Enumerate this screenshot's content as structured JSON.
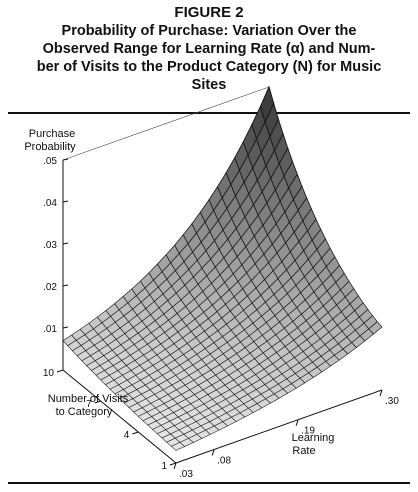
{
  "figure": {
    "label": "FIGURE 2",
    "title_lines": [
      "Probability of Purchase: Variation Over the",
      "Observed Range for Learning Rate (α) and Num-",
      "ber of Visits to the Product Category (N) for Music",
      "Sites"
    ]
  },
  "chart_data": {
    "type": "surface",
    "z_label_lines": [
      "Purchase",
      "Probability"
    ],
    "z_ticks": [
      ".01",
      ".02",
      ".03",
      ".04",
      ".05"
    ],
    "zlim": [
      0.0,
      0.05
    ],
    "y_label_lines": [
      "Number of Visits",
      "to Category"
    ],
    "y_ticks": [
      "1",
      "4",
      "7",
      "10"
    ],
    "ylim": [
      1,
      10
    ],
    "x_label_lines": [
      "Learning",
      "Rate"
    ],
    "x_ticks": [
      ".03",
      ".08",
      ".19",
      ".30"
    ],
    "xlim": [
      0.03,
      0.3
    ],
    "grid": true,
    "series": [
      {
        "x": [
          0.03,
          0.3,
          0.03,
          0.3
        ],
        "y": [
          1,
          1,
          10,
          10
        ],
        "z": [
          0.003,
          0.015,
          0.007,
          0.05
        ]
      }
    ]
  }
}
